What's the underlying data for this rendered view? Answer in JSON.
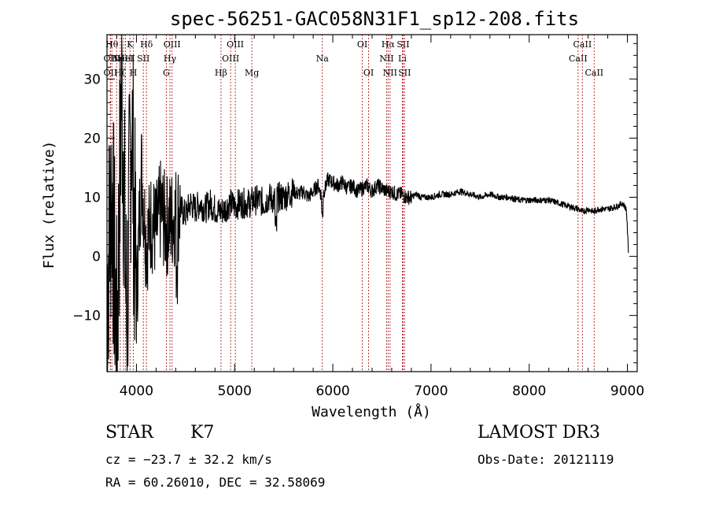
{
  "chart_data": {
    "type": "line",
    "title": "spec-56251-GAC058N31F1_sp12-208.fits",
    "xlabel": "Wavelength (Å)",
    "ylabel": "Flux (relative)",
    "xlim": [
      3700,
      9100
    ],
    "ylim": [
      -19.5,
      37.5
    ],
    "x_ticks": [
      4000,
      5000,
      6000,
      7000,
      8000,
      9000
    ],
    "y_ticks": [
      -10,
      0,
      10,
      20,
      30
    ],
    "x_tick_labels": [
      "4000",
      "5000",
      "6000",
      "7000",
      "8000",
      "9000"
    ],
    "y_tick_labels": [
      "−10",
      "0",
      "10",
      "20",
      "30"
    ],
    "grid": false,
    "series": [
      {
        "name": "flux",
        "x": [
          3700,
          3750,
          3800,
          3850,
          3900,
          3950,
          4000,
          4050,
          4100,
          4150,
          4200,
          4250,
          4300,
          4350,
          4400,
          4450,
          4500,
          4550,
          4600,
          4650,
          4700,
          4750,
          4800,
          4850,
          4900,
          4950,
          5000,
          5050,
          5100,
          5150,
          5200,
          5250,
          5300,
          5350,
          5400,
          5450,
          5500,
          5550,
          5600,
          5650,
          5700,
          5750,
          5800,
          5850,
          5890,
          5950,
          6000,
          6050,
          6100,
          6150,
          6200,
          6250,
          6300,
          6350,
          6400,
          6450,
          6500,
          6550,
          6600,
          6650,
          6700,
          6750,
          6800,
          6850,
          6900,
          6950,
          7000,
          7100,
          7200,
          7300,
          7400,
          7500,
          7600,
          7700,
          7800,
          7900,
          8000,
          8100,
          8200,
          8300,
          8400,
          8500,
          8540,
          8600,
          8660,
          8700,
          8800,
          8900,
          8950,
          8990,
          9010
        ],
        "y": [
          -5,
          12,
          -15,
          30,
          -12,
          25,
          -8,
          15,
          2,
          6,
          4,
          8,
          5,
          6,
          7,
          8,
          7,
          9,
          8,
          9,
          8,
          9,
          8,
          7.5,
          8,
          9,
          8.5,
          9,
          9,
          9,
          9.5,
          9.5,
          9,
          10,
          9.5,
          10,
          10,
          10.5,
          11,
          10.5,
          11,
          10,
          11,
          12,
          10,
          13,
          12.5,
          12,
          12.5,
          11.5,
          12,
          11,
          11.5,
          12,
          11,
          12,
          11.5,
          11,
          11,
          10.5,
          10.5,
          10,
          10,
          10.5,
          10,
          10,
          10,
          10.5,
          10.5,
          11,
          10.5,
          10,
          10.5,
          10,
          10,
          9.5,
          9.5,
          9.5,
          9.5,
          9,
          8.5,
          8,
          7.5,
          8,
          7.5,
          8,
          8,
          8.5,
          9,
          8,
          1
        ]
      }
    ],
    "line_markers": [
      {
        "wavelength": 3750,
        "label": "Hθ",
        "row": 1
      },
      {
        "wavelength": 3735,
        "label": "OII",
        "row": 2
      },
      {
        "wavelength": 3735,
        "label": "OII",
        "row": 3
      },
      {
        "wavelength": 3798,
        "label": "Hη",
        "row": 2
      },
      {
        "wavelength": 3835,
        "label": "Hζ",
        "row": 3
      },
      {
        "wavelength": 3869,
        "label": "NeIII",
        "row": 2
      },
      {
        "wavelength": 3889,
        "label": "HeI",
        "row": 2
      },
      {
        "wavelength": 3934,
        "label": "K",
        "row": 1
      },
      {
        "wavelength": 3969,
        "label": "H",
        "row": 3
      },
      {
        "wavelength": 4070,
        "label": "SII",
        "row": 2
      },
      {
        "wavelength": 4102,
        "label": "Hδ",
        "row": 1
      },
      {
        "wavelength": 4304,
        "label": "G",
        "row": 3
      },
      {
        "wavelength": 4341,
        "label": "Hγ",
        "row": 2
      },
      {
        "wavelength": 4363,
        "label": "OIII",
        "row": 1
      },
      {
        "wavelength": 4861,
        "label": "Hβ",
        "row": 3
      },
      {
        "wavelength": 4959,
        "label": "OIII",
        "row": 2
      },
      {
        "wavelength": 5007,
        "label": "OIII",
        "row": 1
      },
      {
        "wavelength": 5175,
        "label": "Mg",
        "row": 3
      },
      {
        "wavelength": 5893,
        "label": "Na",
        "row": 2
      },
      {
        "wavelength": 6300,
        "label": "OI",
        "row": 1
      },
      {
        "wavelength": 6364,
        "label": "OI",
        "row": 3
      },
      {
        "wavelength": 6548,
        "label": "NII",
        "row": 2
      },
      {
        "wavelength": 6563,
        "label": "Hα",
        "row": 1
      },
      {
        "wavelength": 6583,
        "label": "NII",
        "row": 3
      },
      {
        "wavelength": 6708,
        "label": "Li",
        "row": 2
      },
      {
        "wavelength": 6716,
        "label": "SII",
        "row": 1
      },
      {
        "wavelength": 6731,
        "label": "SII",
        "row": 3
      },
      {
        "wavelength": 8498,
        "label": "CaII",
        "row": 2
      },
      {
        "wavelength": 8542,
        "label": "CaII",
        "row": 1
      },
      {
        "wavelength": 8662,
        "label": "CaII",
        "row": 3
      }
    ]
  },
  "info": {
    "class": "STAR",
    "subclass": "K7",
    "cz_text": "cz = −23.7 ± 32.2 km/s",
    "coords_text": "RA =  60.26010, DEC =  32.58069",
    "survey": "LAMOST DR3",
    "obs_date": "Obs-Date: 20121119"
  }
}
